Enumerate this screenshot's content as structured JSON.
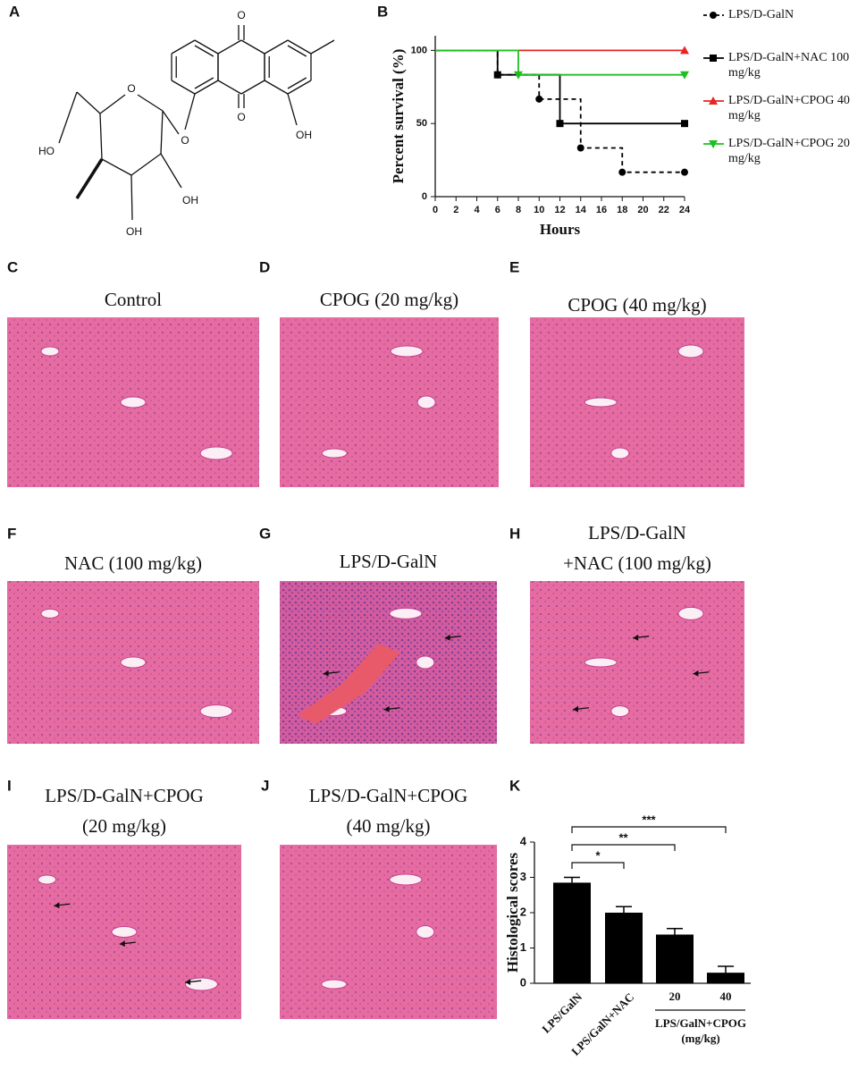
{
  "panel_labels": [
    "A",
    "B",
    "C",
    "D",
    "E",
    "F",
    "G",
    "H",
    "I",
    "J",
    "K"
  ],
  "structure": {
    "labels": [
      "O",
      "O",
      "OH",
      "O",
      "O",
      "HO",
      "OH",
      "OH"
    ]
  },
  "histology": [
    {
      "title": [
        "Control"
      ]
    },
    {
      "title": [
        "CPOG (20 mg/kg)"
      ]
    },
    {
      "title": [
        "CPOG (40 mg/kg)"
      ]
    },
    {
      "title": [
        "NAC (100 mg/kg)"
      ]
    },
    {
      "title": [
        "LPS/D-GalN"
      ]
    },
    {
      "title": [
        "LPS/D-GalN",
        "+NAC (100 mg/kg)"
      ]
    },
    {
      "title": [
        "LPS/D-GalN+CPOG",
        "(20 mg/kg)"
      ]
    },
    {
      "title": [
        "LPS/D-GalN+CPOG",
        "(40 mg/kg)"
      ]
    }
  ],
  "chart_data": [
    {
      "type": "step",
      "ylabel": "Percent survival (%)",
      "xlabel": "Hours",
      "xlim": [
        0,
        24
      ],
      "xticks": [
        0,
        2,
        4,
        6,
        8,
        10,
        12,
        14,
        16,
        18,
        20,
        22,
        24
      ],
      "ylim": [
        0,
        110
      ],
      "yticks": [
        0,
        50,
        100
      ],
      "series": [
        {
          "name": "LPS/D-GalN",
          "color": "#000000",
          "marker": "circle",
          "dashed": true,
          "x": [
            0,
            6,
            10,
            14,
            18,
            24
          ],
          "values": [
            100,
            83.3,
            66.7,
            33.3,
            16.7,
            16.7
          ]
        },
        {
          "name": "LPS/D-GalN+NAC 100 mg/kg",
          "color": "#000000",
          "marker": "square",
          "dashed": false,
          "x": [
            0,
            6,
            12,
            24
          ],
          "values": [
            100,
            83.3,
            50,
            50
          ]
        },
        {
          "name": "LPS/D-GalN+CPOG 40 mg/kg",
          "color": "#e8251f",
          "marker": "triangle",
          "dashed": false,
          "x": [
            0,
            24
          ],
          "values": [
            100,
            100
          ]
        },
        {
          "name": "LPS/D-GalN+CPOG 20 mg/kg",
          "color": "#1fbf1f",
          "marker": "triangle-down",
          "dashed": false,
          "x": [
            0,
            8,
            24
          ],
          "values": [
            100,
            83.3,
            83.3
          ]
        }
      ]
    },
    {
      "type": "bar",
      "ylabel": "Histological scores",
      "categories": [
        "LPS/GalN",
        "LPS/GalN+NAC",
        "20",
        "40"
      ],
      "values": [
        2.85,
        2.0,
        1.38,
        0.3
      ],
      "errors": [
        0.15,
        0.17,
        0.17,
        0.18
      ],
      "color": "#000000",
      "group_label": [
        "LPS/GalN+CPOG",
        "(mg/kg)"
      ],
      "annotations": [
        "*",
        "**",
        "***"
      ],
      "ylim": [
        0,
        4
      ],
      "yticks": [
        0,
        1,
        2,
        3,
        4
      ]
    }
  ]
}
